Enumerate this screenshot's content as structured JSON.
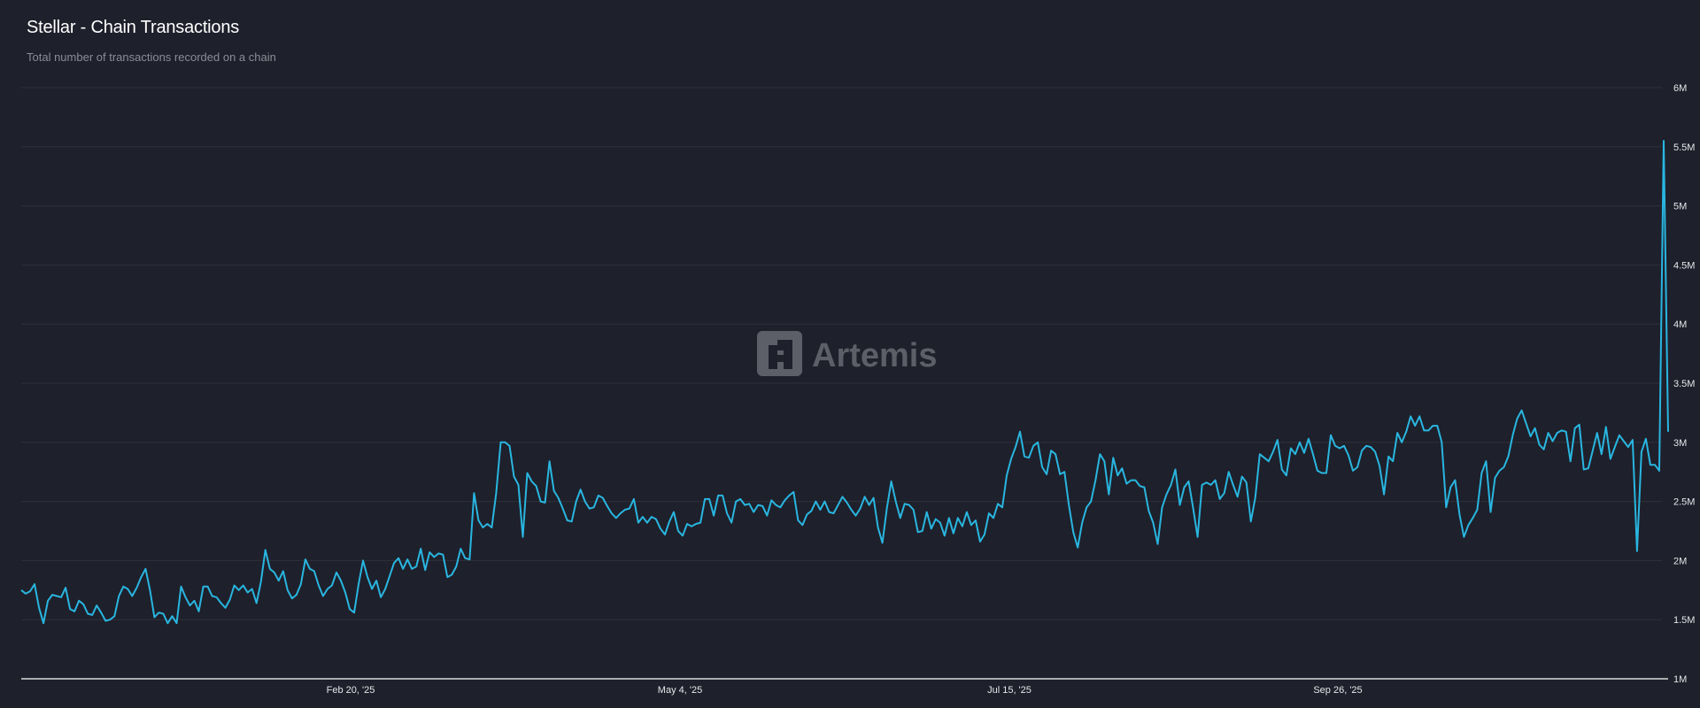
{
  "header": {
    "title": "Stellar - Chain Transactions",
    "subtitle": "Total number of transactions recorded on a chain"
  },
  "watermark": {
    "label": "Artemis",
    "icon": "artemis-logo-icon"
  },
  "colors": {
    "background": "#1e202b",
    "line": "#29b6e0",
    "grid": "#2e303b",
    "axis": "#ffffff",
    "text": "#e6e7ea",
    "subtitle": "#8a8c96"
  },
  "chart_data": {
    "type": "line",
    "title": "Stellar - Chain Transactions",
    "subtitle": "Total number of transactions recorded on a chain",
    "xlabel": "",
    "ylabel": "",
    "ylim": [
      1000000,
      6000000
    ],
    "y_ticks": [
      "1M",
      "1.5M",
      "2M",
      "2.5M",
      "3M",
      "3.5M",
      "4M",
      "4.5M",
      "5M",
      "5.5M",
      "6M"
    ],
    "x_ticks": [
      {
        "label": "Feb 20, '25",
        "index": 73
      },
      {
        "label": "May 4, '25",
        "index": 146
      },
      {
        "label": "Jul 15, '25",
        "index": 219
      },
      {
        "label": "Sep 26, '25",
        "index": 292
      }
    ],
    "grid": true,
    "legend": null,
    "axis_position": "right",
    "series": [
      {
        "name": "Chain Transactions",
        "color": "#29b6e0",
        "values_millions": [
          1.75,
          1.72,
          1.74,
          1.8,
          1.6,
          1.47,
          1.66,
          1.71,
          1.7,
          1.69,
          1.77,
          1.59,
          1.57,
          1.66,
          1.63,
          1.55,
          1.54,
          1.62,
          1.56,
          1.49,
          1.5,
          1.53,
          1.7,
          1.78,
          1.76,
          1.7,
          1.77,
          1.86,
          1.93,
          1.75,
          1.52,
          1.56,
          1.55,
          1.47,
          1.53,
          1.47,
          1.78,
          1.69,
          1.62,
          1.66,
          1.57,
          1.78,
          1.78,
          1.7,
          1.69,
          1.64,
          1.6,
          1.67,
          1.79,
          1.75,
          1.79,
          1.73,
          1.76,
          1.64,
          1.82,
          2.09,
          1.93,
          1.9,
          1.83,
          1.91,
          1.75,
          1.68,
          1.71,
          1.8,
          2.01,
          1.93,
          1.91,
          1.79,
          1.7,
          1.76,
          1.79,
          1.9,
          1.83,
          1.73,
          1.59,
          1.56,
          1.8,
          2.0,
          1.86,
          1.76,
          1.83,
          1.69,
          1.76,
          1.87,
          1.98,
          2.02,
          1.93,
          2.01,
          1.93,
          1.95,
          2.1,
          1.92,
          2.07,
          2.03,
          2.06,
          2.05,
          1.86,
          1.88,
          1.95,
          2.1,
          2.02,
          2.01,
          2.57,
          2.34,
          2.28,
          2.31,
          2.28,
          2.57,
          3.0,
          3.0,
          2.97,
          2.71,
          2.64,
          2.2,
          2.74,
          2.67,
          2.63,
          2.5,
          2.49,
          2.84,
          2.59,
          2.53,
          2.44,
          2.34,
          2.33,
          2.5,
          2.6,
          2.5,
          2.44,
          2.45,
          2.55,
          2.53,
          2.46,
          2.4,
          2.36,
          2.4,
          2.43,
          2.44,
          2.52,
          2.32,
          2.37,
          2.32,
          2.37,
          2.35,
          2.27,
          2.22,
          2.33,
          2.41,
          2.25,
          2.21,
          2.31,
          2.29,
          2.31,
          2.32,
          2.52,
          2.52,
          2.38,
          2.55,
          2.55,
          2.4,
          2.32,
          2.5,
          2.52,
          2.47,
          2.48,
          2.41,
          2.47,
          2.46,
          2.38,
          2.51,
          2.47,
          2.45,
          2.51,
          2.55,
          2.58,
          2.34,
          2.3,
          2.39,
          2.42,
          2.5,
          2.43,
          2.5,
          2.41,
          2.4,
          2.47,
          2.54,
          2.49,
          2.43,
          2.38,
          2.44,
          2.54,
          2.47,
          2.53,
          2.28,
          2.15,
          2.44,
          2.67,
          2.5,
          2.36,
          2.48,
          2.47,
          2.43,
          2.24,
          2.25,
          2.41,
          2.27,
          2.35,
          2.32,
          2.21,
          2.36,
          2.23,
          2.36,
          2.29,
          2.41,
          2.3,
          2.34,
          2.16,
          2.22,
          2.4,
          2.36,
          2.48,
          2.45,
          2.72,
          2.86,
          2.96,
          3.09,
          2.88,
          2.87,
          2.97,
          3.0,
          2.79,
          2.73,
          2.93,
          2.9,
          2.73,
          2.75,
          2.47,
          2.24,
          2.11,
          2.32,
          2.45,
          2.5,
          2.68,
          2.9,
          2.84,
          2.56,
          2.87,
          2.72,
          2.78,
          2.65,
          2.68,
          2.68,
          2.63,
          2.62,
          2.42,
          2.32,
          2.14,
          2.45,
          2.56,
          2.64,
          2.77,
          2.47,
          2.62,
          2.67,
          2.44,
          2.2,
          2.64,
          2.66,
          2.64,
          2.68,
          2.52,
          2.57,
          2.75,
          2.64,
          2.54,
          2.71,
          2.66,
          2.33,
          2.53,
          2.9,
          2.87,
          2.84,
          2.92,
          3.02,
          2.77,
          2.72,
          2.95,
          2.9,
          3.0,
          2.91,
          3.03,
          2.9,
          2.76,
          2.74,
          2.74,
          3.06,
          2.97,
          2.95,
          2.97,
          2.89,
          2.76,
          2.79,
          2.93,
          2.97,
          2.96,
          2.92,
          2.8,
          2.56,
          2.88,
          2.84,
          3.08,
          3.0,
          3.09,
          3.22,
          3.14,
          3.22,
          3.1,
          3.1,
          3.14,
          3.14,
          3.0,
          2.45,
          2.62,
          2.68,
          2.39,
          2.2,
          2.3,
          2.36,
          2.43,
          2.74,
          2.84,
          2.41,
          2.7,
          2.76,
          2.79,
          2.88,
          3.06,
          3.2,
          3.27,
          3.16,
          3.05,
          3.12,
          2.98,
          2.94,
          3.08,
          3.01,
          3.08,
          3.1,
          3.09,
          2.84,
          3.12,
          3.15,
          2.77,
          2.78,
          2.93,
          3.08,
          2.9,
          3.13,
          2.86,
          2.96,
          3.06,
          3.01,
          2.96,
          3.02,
          2.08,
          2.92,
          3.03,
          2.81,
          2.81,
          2.76,
          5.55,
          3.09
        ]
      }
    ]
  }
}
